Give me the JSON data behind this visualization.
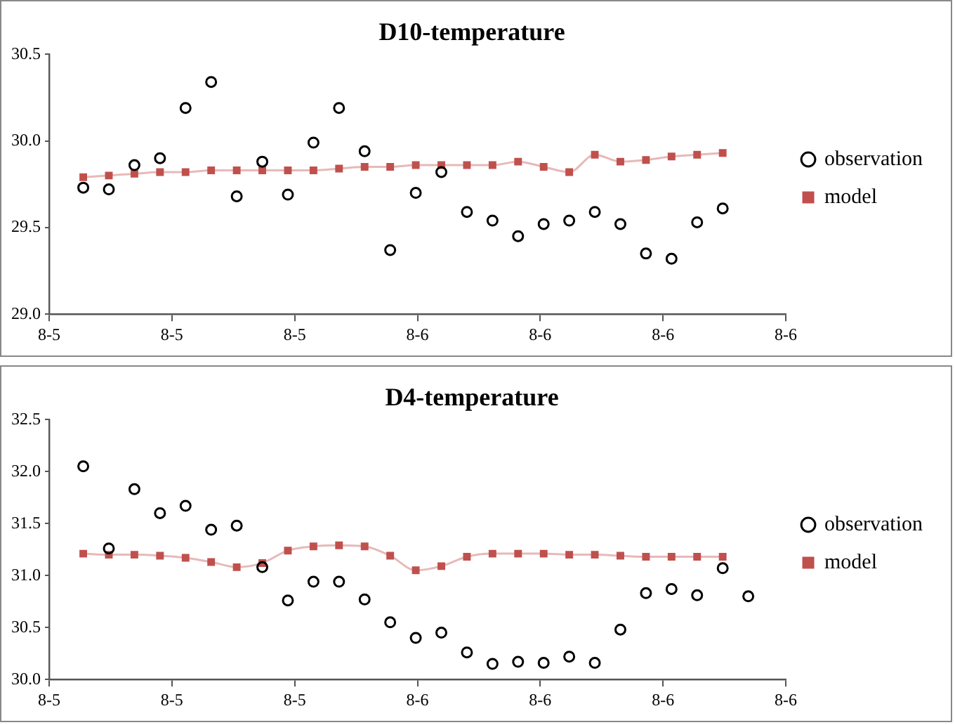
{
  "chart_data": [
    {
      "type": "line",
      "title": "D10-temperature",
      "x": [
        "--08-05T13:00",
        "--08-05T14:00",
        "--08-05T15:00",
        "--08-05T16:00",
        "--08-05T17:00",
        "--08-05T18:00",
        "--08-05T19:00",
        "--08-05T20:00",
        "--08-05T21:00",
        "--08-05T22:00",
        "--08-05T23:00",
        "--08-06T00:00",
        "--08-06T01:00",
        "--08-06T02:00",
        "--08-06T03:00",
        "--08-06T04:00",
        "--08-06T05:00",
        "--08-06T06:00",
        "--08-06T07:00",
        "--08-06T08:00",
        "--08-06T09:00",
        "--08-06T10:00",
        "--08-06T11:00",
        "--08-06T12:00",
        "--08-06T13:00",
        "--08-06T14:00"
      ],
      "xlim": [
        "--08-05T11:40",
        "--08-06T16:28"
      ],
      "xticks": [
        {
          "value": "--08-05T11:40",
          "label": "8-5"
        },
        {
          "value": "--08-05T16:28",
          "label": "8-5"
        },
        {
          "value": "--08-05T21:16",
          "label": "8-5"
        },
        {
          "value": "--08-06T02:04",
          "label": "8-6"
        },
        {
          "value": "--08-06T06:52",
          "label": "8-6"
        },
        {
          "value": "--08-06T11:40",
          "label": "8-6"
        },
        {
          "value": "--08-06T16:28",
          "label": "8-6"
        }
      ],
      "ylim": [
        29.0,
        30.5
      ],
      "yticks": [
        {
          "value": 29,
          "label": "29.0"
        },
        29.5,
        {
          "value": 30,
          "label": "30.0"
        },
        30.5
      ],
      "grid": false,
      "legend": "right",
      "series": [
        {
          "name": "observation",
          "type": "scatter",
          "marker": "circle",
          "color": "#000000",
          "values": [
            29.73,
            29.72,
            29.86,
            29.9,
            30.19,
            30.34,
            29.68,
            29.88,
            29.69,
            29.99,
            30.19,
            29.94,
            29.37,
            29.7,
            29.82,
            29.59,
            29.54,
            29.45,
            29.52,
            29.54,
            29.59,
            29.52,
            29.35,
            29.32,
            29.53,
            29.61
          ]
        },
        {
          "name": "model",
          "marker": "square",
          "color": "#c0504d",
          "values": [
            29.79,
            29.8,
            29.81,
            29.82,
            29.82,
            29.83,
            29.83,
            29.83,
            29.83,
            29.83,
            29.84,
            29.85,
            29.85,
            29.86,
            29.86,
            29.86,
            29.86,
            29.88,
            29.85,
            29.82,
            29.92,
            29.88,
            29.89,
            29.91,
            29.92,
            29.93
          ]
        }
      ]
    },
    {
      "type": "line",
      "title": "D4-temperature",
      "x": [
        "--08-05T13:00",
        "--08-05T14:00",
        "--08-05T15:00",
        "--08-05T16:00",
        "--08-05T17:00",
        "--08-05T18:00",
        "--08-05T19:00",
        "--08-05T20:00",
        "--08-05T21:00",
        "--08-05T22:00",
        "--08-05T23:00",
        "--08-06T00:00",
        "--08-06T01:00",
        "--08-06T02:00",
        "--08-06T03:00",
        "--08-06T04:00",
        "--08-06T05:00",
        "--08-06T06:00",
        "--08-06T07:00",
        "--08-06T08:00",
        "--08-06T09:00",
        "--08-06T10:00",
        "--08-06T11:00",
        "--08-06T12:00",
        "--08-06T13:00",
        "--08-06T14:00",
        "--08-06T15:00"
      ],
      "xlim": [
        "--08-05T11:40",
        "--08-06T16:28"
      ],
      "xticks": [
        {
          "value": "--08-05T11:40",
          "label": "8-5"
        },
        {
          "value": "--08-05T16:28",
          "label": "8-5"
        },
        {
          "value": "--08-05T21:16",
          "label": "8-5"
        },
        {
          "value": "--08-06T02:04",
          "label": "8-6"
        },
        {
          "value": "--08-06T06:52",
          "label": "8-6"
        },
        {
          "value": "--08-06T11:40",
          "label": "8-6"
        },
        {
          "value": "--08-06T16:28",
          "label": "8-6"
        }
      ],
      "ylim": [
        30.0,
        32.5
      ],
      "yticks": [
        {
          "value": 30,
          "label": "30.0"
        },
        30.5,
        {
          "value": 31,
          "label": "31.0"
        },
        31.5,
        {
          "value": 32,
          "label": "32.0"
        },
        32.5
      ],
      "grid": false,
      "legend": "right",
      "series": [
        {
          "name": "observation",
          "type": "scatter",
          "marker": "circle",
          "color": "#000000",
          "values": [
            32.05,
            31.26,
            31.83,
            31.6,
            31.67,
            31.44,
            31.48,
            31.08,
            30.76,
            30.94,
            30.94,
            30.77,
            30.55,
            30.4,
            30.45,
            30.26,
            30.15,
            30.17,
            30.16,
            30.22,
            30.16,
            30.48,
            30.83,
            30.87,
            30.81,
            31.07,
            30.8
          ]
        },
        {
          "name": "model",
          "marker": "square",
          "color": "#c0504d",
          "values": [
            31.21,
            31.2,
            31.2,
            31.19,
            31.17,
            31.13,
            31.08,
            31.12,
            31.24,
            31.28,
            31.29,
            31.28,
            31.19,
            31.05,
            31.09,
            31.18,
            31.21,
            31.21,
            31.21,
            31.2,
            31.2,
            31.19,
            31.18,
            31.18,
            31.18,
            31.18,
            null
          ]
        }
      ]
    }
  ]
}
